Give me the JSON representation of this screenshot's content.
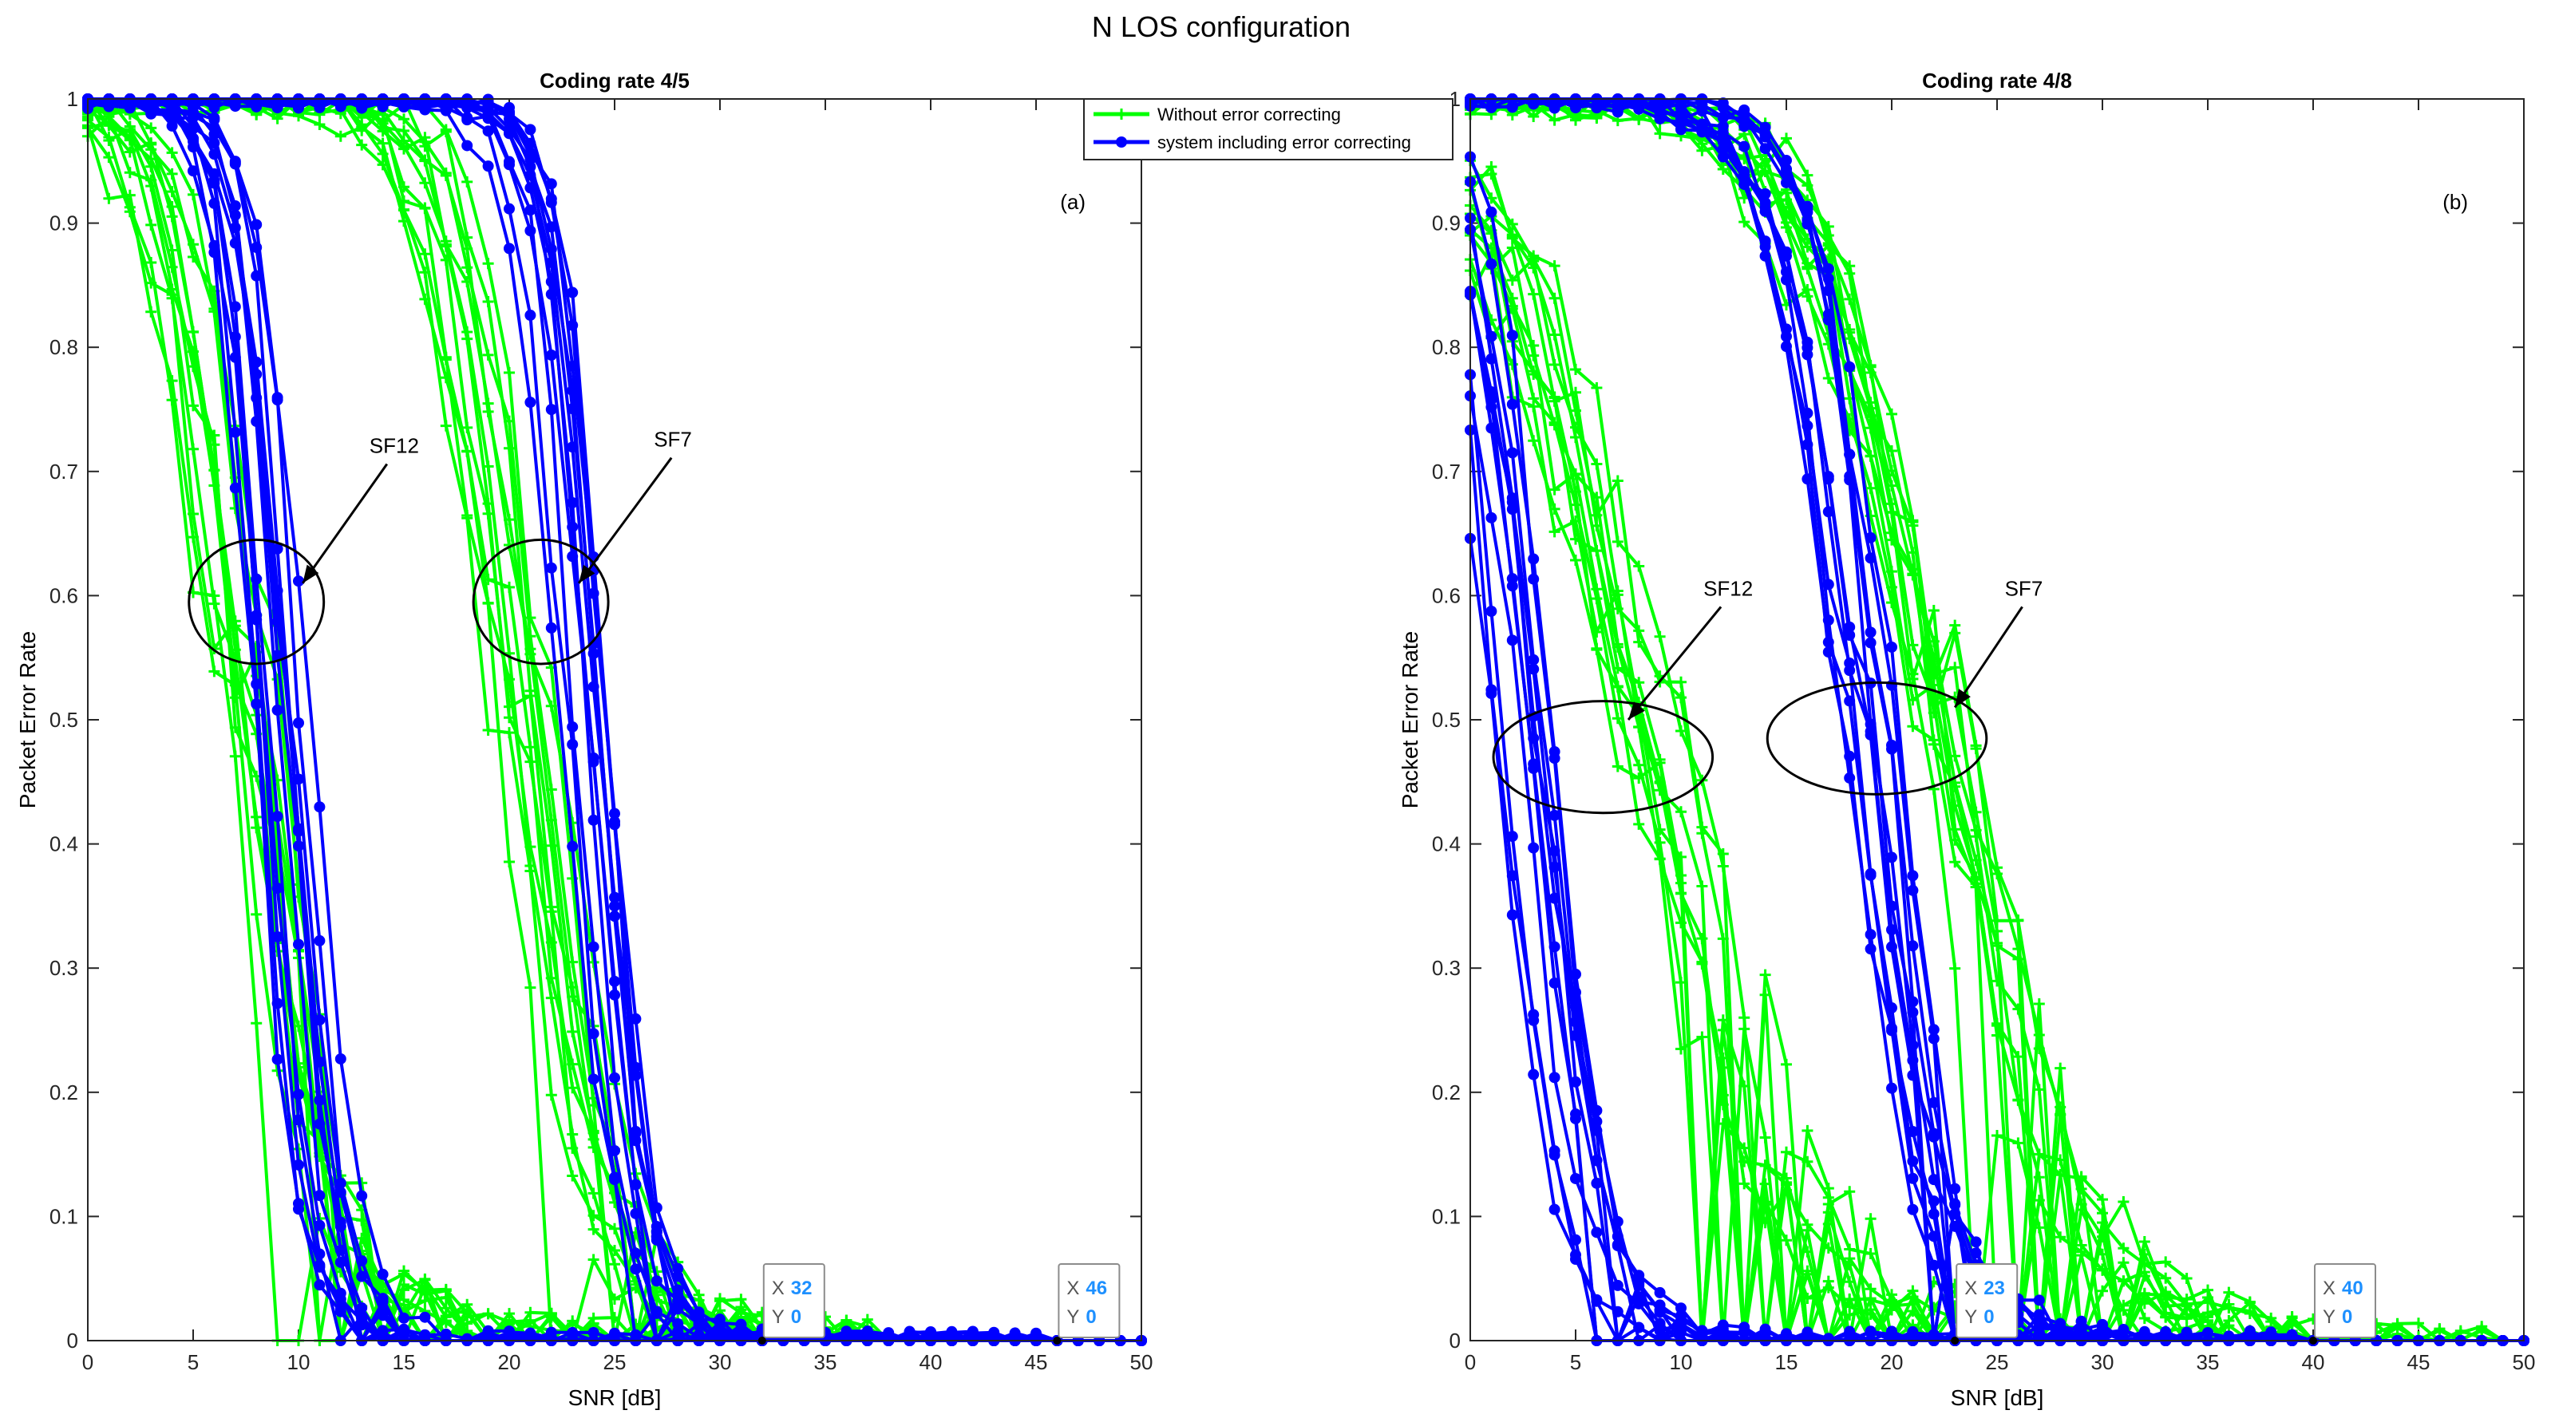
{
  "figure": {
    "suptitle": "N LOS configuration"
  },
  "legend": {
    "entries": [
      {
        "label": "Without error correcting",
        "color": "#00ff00",
        "marker": "plus"
      },
      {
        "label": "system including error correcting",
        "color": "#0000ff",
        "marker": "circle"
      }
    ]
  },
  "colors": {
    "no_fec": "#00ff00",
    "fec": "#0000ff",
    "datatip_value": "#1e90ff"
  },
  "chart_data": [
    {
      "type": "line",
      "title": "Coding rate 4/5",
      "panel_label": "(a)",
      "xlabel": "SNR [dB]",
      "ylabel": "Packet Error Rate",
      "xlim": [
        0,
        50
      ],
      "ylim": [
        0,
        1
      ],
      "xticks": [
        "0",
        "5",
        "10",
        "15",
        "20",
        "25",
        "30",
        "35",
        "40",
        "45",
        "50"
      ],
      "yticks": [
        "0",
        "0.1",
        "0.2",
        "0.3",
        "0.4",
        "0.5",
        "0.6",
        "0.7",
        "0.8",
        "0.9",
        "1"
      ],
      "legend_position": "top-right",
      "annotations": [
        {
          "text": "SF12",
          "ellipse_center": [
            8,
            0.595
          ],
          "ellipse_radius": [
            3.2,
            0.05
          ],
          "label_at": [
            14.5,
            0.715
          ],
          "arrow_to": [
            10.2,
            0.61
          ]
        },
        {
          "text": "SF7",
          "ellipse_center": [
            21.5,
            0.595
          ],
          "ellipse_radius": [
            3.2,
            0.05
          ],
          "label_at": [
            28,
            0.72
          ],
          "arrow_to": [
            23.3,
            0.61
          ]
        }
      ],
      "datatips": [
        {
          "x_label": "X",
          "x_value": "32",
          "y_label": "Y",
          "y_value": "0",
          "x": 32,
          "y": 0
        },
        {
          "x_label": "X",
          "x_value": "46",
          "y_label": "Y",
          "y_value": "0",
          "x": 46,
          "y": 0
        }
      ],
      "series": [
        {
          "name": "Without error correcting (SF12 group)",
          "kind": "no_fec",
          "count": 12,
          "center": 7.2,
          "width": 1.6,
          "knee": 0.62,
          "tail_scale": 5.5,
          "tail_amp": 0.12,
          "zero_at": 34,
          "seed": 11
        },
        {
          "name": "system including error correcting (SF12 group)",
          "kind": "fec",
          "count": 12,
          "center": 9.2,
          "width": 1.05,
          "knee": 0.62,
          "tail_scale": 2.0,
          "tail_amp": 0.04,
          "zero_at": 46,
          "seed": 23
        },
        {
          "name": "Without error correcting (SF7 group)",
          "kind": "no_fec",
          "count": 12,
          "center": 20.3,
          "width": 1.6,
          "knee": 0.6,
          "tail_scale": 5.0,
          "tail_amp": 0.1,
          "zero_at": 38,
          "seed": 37
        },
        {
          "name": "system including error correcting (SF7 group)",
          "kind": "fec",
          "count": 12,
          "center": 23.3,
          "width": 1.05,
          "knee": 0.6,
          "tail_scale": 2.6,
          "tail_amp": 0.05,
          "zero_at": 46,
          "seed": 41
        }
      ]
    },
    {
      "type": "line",
      "title": "Coding rate 4/8",
      "panel_label": "(b)",
      "xlabel": "SNR [dB]",
      "ylabel": "Packet Error Rate",
      "xlim": [
        0,
        50
      ],
      "ylim": [
        0,
        1
      ],
      "xticks": [
        "0",
        "5",
        "10",
        "15",
        "20",
        "25",
        "30",
        "35",
        "40",
        "45",
        "50"
      ],
      "yticks": [
        "0",
        "0.1",
        "0.2",
        "0.3",
        "0.4",
        "0.5",
        "0.6",
        "0.7",
        "0.8",
        "0.9",
        "1"
      ],
      "legend_position": "none",
      "annotations": [
        {
          "text": "SF12",
          "ellipse_center": [
            6.3,
            0.47
          ],
          "ellipse_radius": [
            5.2,
            0.045
          ],
          "label_at": [
            12.2,
            0.6
          ],
          "arrow_to": [
            7.5,
            0.5
          ]
        },
        {
          "text": "SF7",
          "ellipse_center": [
            19.3,
            0.485
          ],
          "ellipse_radius": [
            5.2,
            0.045
          ],
          "label_at": [
            26.5,
            0.6
          ],
          "arrow_to": [
            23.0,
            0.51
          ]
        }
      ],
      "datatips": [
        {
          "x_label": "X",
          "x_value": "23",
          "y_label": "Y",
          "y_value": "0",
          "x": 23,
          "y": 0
        },
        {
          "x_label": "X",
          "x_value": "40",
          "y_label": "Y",
          "y_value": "0",
          "x": 40,
          "y": 0
        }
      ],
      "series": [
        {
          "name": "Without error correcting (SF12 group)",
          "kind": "no_fec",
          "count": 12,
          "center": 8.2,
          "width": 3.2,
          "knee": 0.55,
          "tail_scale": 5.0,
          "tail_amp": 0.06,
          "zero_at": 30,
          "seed": 53
        },
        {
          "name": "system including error correcting (SF12 group)",
          "kind": "fec",
          "count": 12,
          "center": 2.3,
          "width": 1.4,
          "knee": 0.55,
          "tail_scale": 3.0,
          "tail_amp": 0.04,
          "zero_at": 30,
          "seed": 67
        },
        {
          "name": "Without error correcting (SF7 group)",
          "kind": "no_fec",
          "count": 12,
          "center": 21.5,
          "width": 2.8,
          "knee": 0.5,
          "tail_scale": 6.0,
          "tail_amp": 0.08,
          "zero_at": 49,
          "seed": 71
        },
        {
          "name": "system including error correcting (SF7 group)",
          "kind": "fec",
          "count": 12,
          "center": 18.8,
          "width": 1.6,
          "knee": 0.5,
          "tail_scale": 3.5,
          "tail_amp": 0.07,
          "zero_at": 40,
          "seed": 83
        }
      ]
    }
  ]
}
